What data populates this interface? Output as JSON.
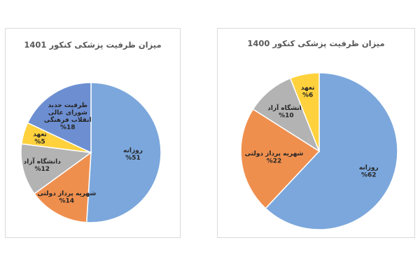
{
  "chart_data": [
    {
      "type": "pie",
      "title": "میزان ظرفیت پزشکی کنکور 1401",
      "slices": [
        {
          "label": "روزانه",
          "value_label": "%51",
          "value": 51,
          "color": "#7ba7dc"
        },
        {
          "label": "شهریه پرداز دولتی",
          "value_label": "%14",
          "value": 14,
          "color": "#ef8f4e"
        },
        {
          "label": "دانشگاه آزاد",
          "value_label": "%12",
          "value": 12,
          "color": "#b3b3b3"
        },
        {
          "label": "تعهد",
          "value_label": "%5",
          "value": 5,
          "color": "#ffd13d"
        },
        {
          "label_lines": [
            "ظرفیت جدید",
            "شورای عالی",
            "انقلاب فرهنگی"
          ],
          "value_label": "%18",
          "value": 18,
          "color": "#6d8fd2"
        }
      ]
    },
    {
      "type": "pie",
      "title": "میزان ظرفیت پزشکی کنکور 1400",
      "slices": [
        {
          "label": "روزانه",
          "value_label": "%62",
          "value": 62,
          "color": "#7ba7dc"
        },
        {
          "label": "شهریه پرداز دولتی",
          "value_label": "%22",
          "value": 22,
          "color": "#ef8f4e"
        },
        {
          "label": "دانشگاه آزاد",
          "value_label": "%10",
          "value": 10,
          "color": "#b3b3b3"
        },
        {
          "label": "تعهد",
          "value_label": "%6",
          "value": 6,
          "color": "#ffd13d"
        }
      ]
    }
  ]
}
